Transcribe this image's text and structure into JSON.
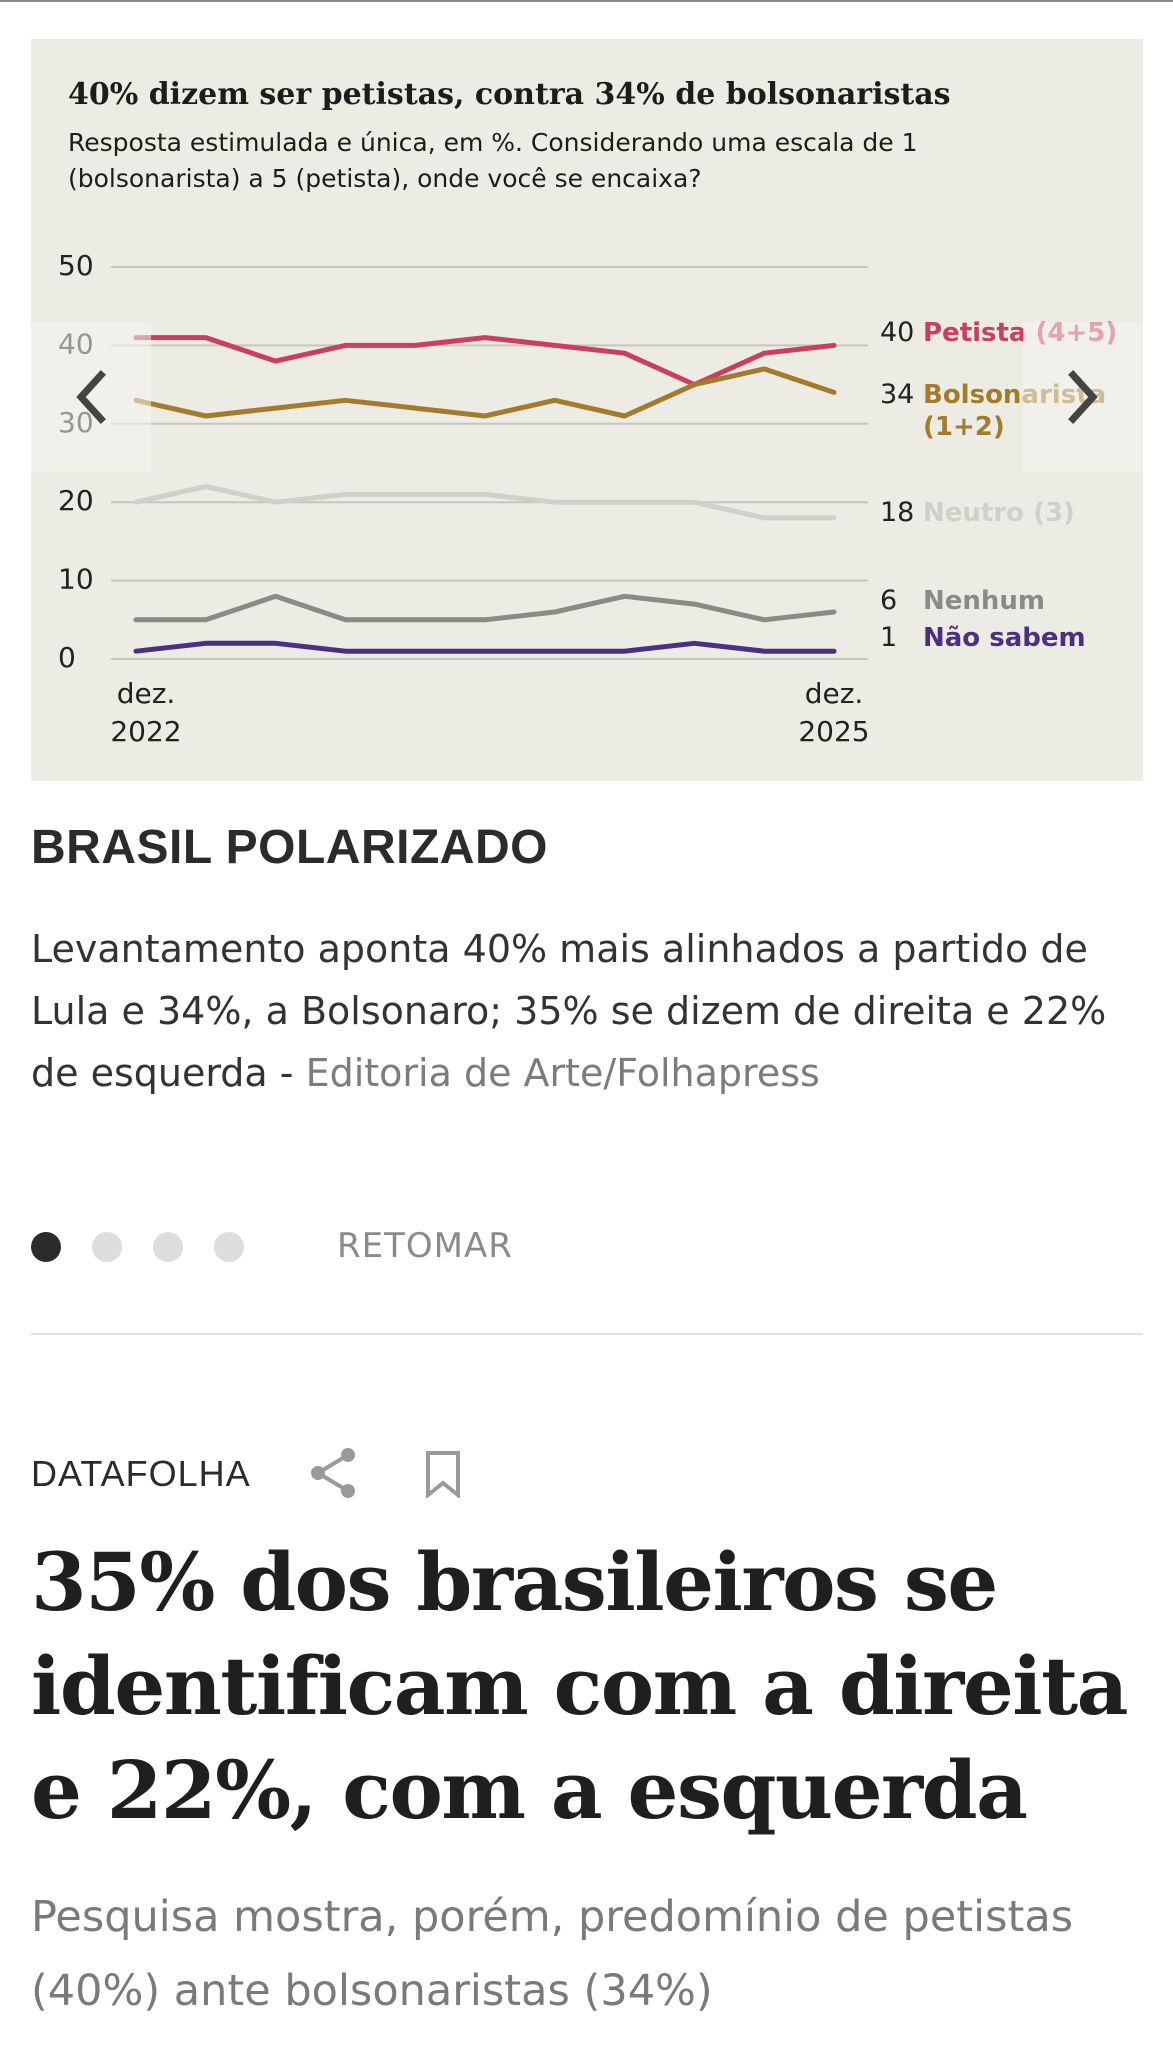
{
  "chart_data": {
    "type": "line",
    "title": "40% dizem ser petistas, contra 34% de bolsonaristas",
    "subtitle": "Resposta estimulada e única, em %. Considerando uma escala de 1 (bolsonarista) a 5 (petista), onde você se encaixa?",
    "ylim": [
      0,
      50
    ],
    "yticks": [
      "50",
      "40",
      "30",
      "20",
      "10",
      "0"
    ],
    "x_start_label": [
      "dez.",
      "2022"
    ],
    "x_end_label": [
      "dez.",
      "2025"
    ],
    "series": [
      {
        "name": "Petista (4+5)",
        "color": "#c9405d",
        "end_label": "40",
        "values": [
          41,
          41,
          38,
          40,
          40,
          41,
          40,
          39,
          35,
          39,
          40
        ]
      },
      {
        "name": "Bolsonarista (1+2)",
        "color": "#a37b2c",
        "end_label": "34",
        "values": [
          33,
          31,
          32,
          33,
          32,
          31,
          33,
          31,
          35,
          37,
          34
        ]
      },
      {
        "name": "Neutro (3)",
        "color": "#cfcfcb",
        "end_label": "18",
        "values": [
          20,
          22,
          20,
          21,
          21,
          21,
          20,
          20,
          20,
          18,
          18
        ]
      },
      {
        "name": "Nenhum",
        "color": "#8a8a86",
        "end_label": "6",
        "values": [
          5,
          5,
          8,
          5,
          5,
          5,
          6,
          8,
          7,
          5,
          6
        ]
      },
      {
        "name": "Não sabem",
        "color": "#4b2f82",
        "end_label": "1",
        "values": [
          1,
          2,
          2,
          1,
          1,
          1,
          1,
          1,
          2,
          1,
          1
        ]
      }
    ]
  },
  "caption": {
    "title": "BRASIL POLARIZADO",
    "text": "Levantamento aponta 40% mais alinhados a partido de Lula e 34%, a Bolsonaro; 35% se dizem de direita e 22% de esquerda - ",
    "credit": "Editoria de Arte/Folhapress"
  },
  "carousel": {
    "slide_count": 4,
    "active_index": 0,
    "resume_label": "RETOMAR"
  },
  "article": {
    "kicker": "DATAFOLHA",
    "headline": "35% dos brasileiros se identificam com a direita e 22%, com a esquerda",
    "subhead": "Pesquisa mostra, porém, predomínio de petistas (40%) ante bolsonaristas (34%)"
  },
  "icons": {
    "prev": "chevron-left-icon",
    "next": "chevron-right-icon",
    "share": "share-icon",
    "bookmark": "bookmark-icon"
  },
  "colors": {
    "chart_background": "#ecebe4",
    "petista": "#c9405d",
    "bolsonarista": "#a37b2c",
    "neutro": "#cfcfcb",
    "nenhum": "#8a8a86",
    "nao_sabem": "#4b2f82"
  }
}
